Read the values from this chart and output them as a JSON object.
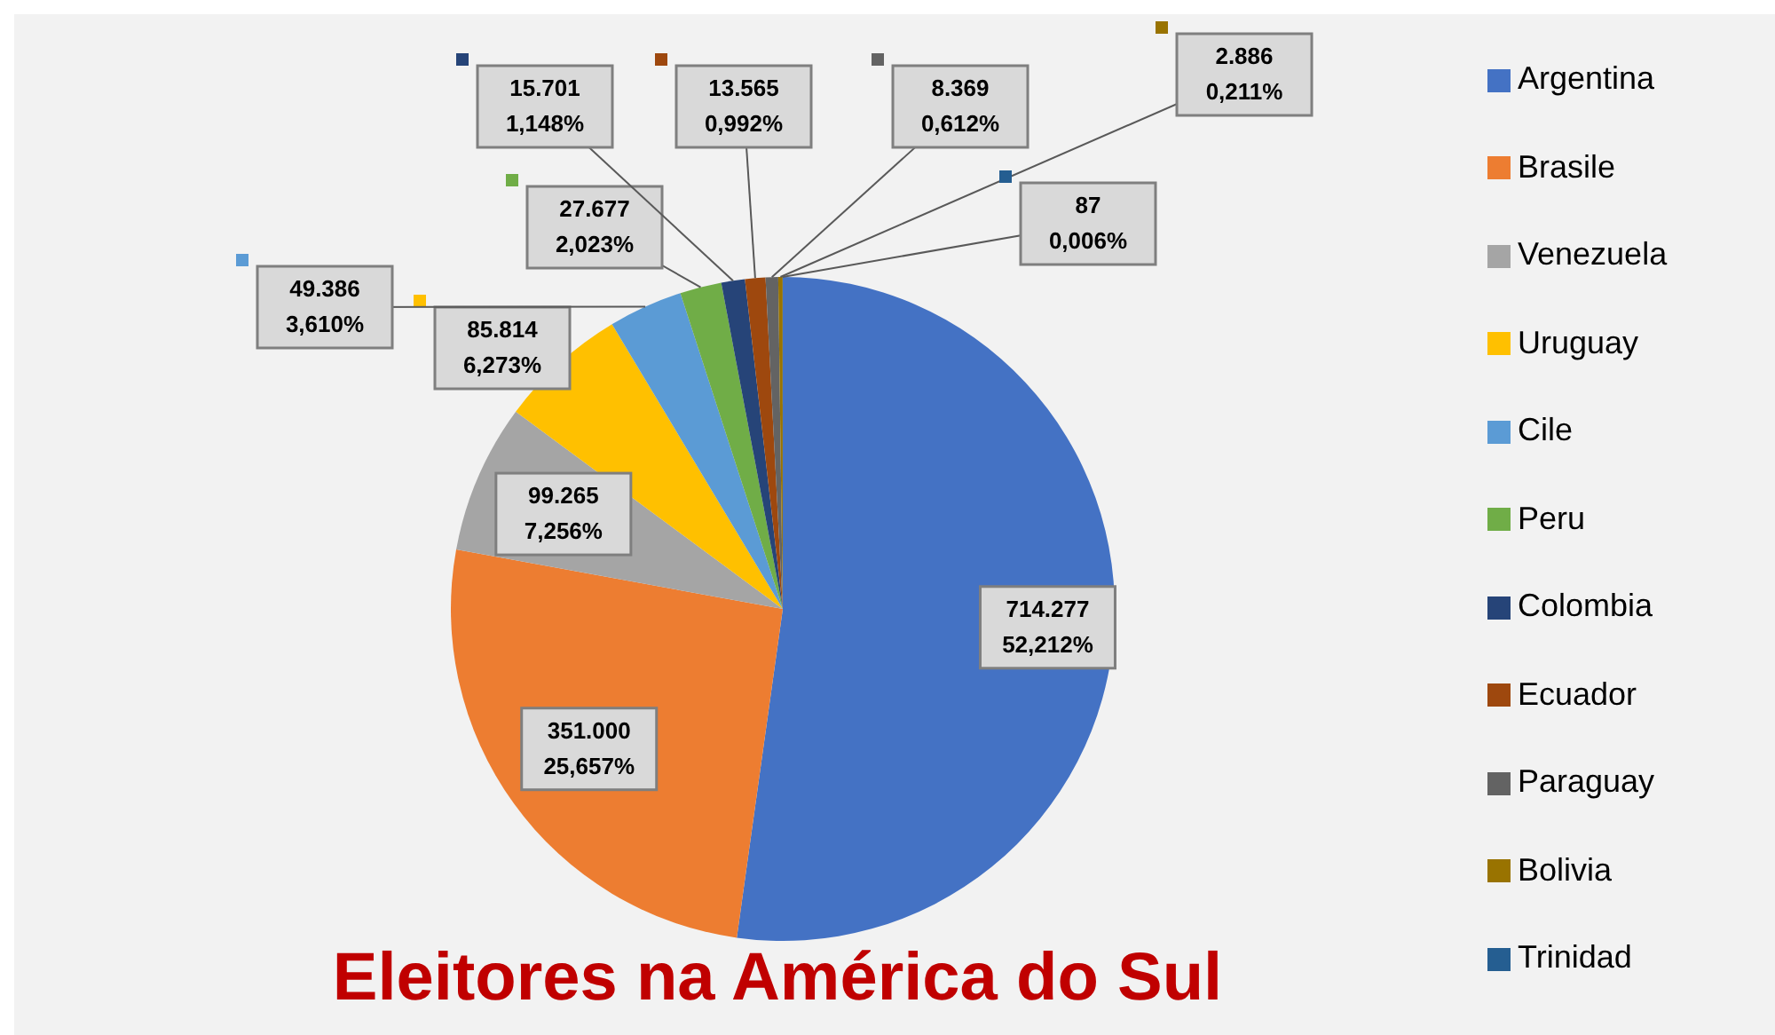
{
  "chart_data": {
    "type": "pie",
    "title": "Eleitores na América do Sul",
    "legend": "right",
    "categories": [
      "Argentina",
      "Brasile",
      "Venezuela",
      "Uruguay",
      "Cile",
      "Peru",
      "Colombia",
      "Ecuador",
      "Paraguay",
      "Bolivia",
      "Trinidad"
    ],
    "values": [
      714277,
      351000,
      99265,
      85814,
      49386,
      27677,
      15701,
      13565,
      8369,
      2886,
      87
    ],
    "colors": [
      "#4472c4",
      "#ed7d31",
      "#a5a5a5",
      "#ffc000",
      "#5b9bd5",
      "#70ad47",
      "#264478",
      "#9e480e",
      "#636363",
      "#997300",
      "#255e91"
    ],
    "value_labels": [
      "714.277\n52,212%",
      "351.000\n25,657%",
      "99.265\n7,256%",
      "85.814\n6,273%",
      "49.386\n3,610%",
      "27.677\n2,023%",
      "15.701\n1,148%",
      "13.565\n0,992%",
      "8.369\n0,612%",
      "2.886\n0,211%",
      "87\n0,006%"
    ]
  }
}
